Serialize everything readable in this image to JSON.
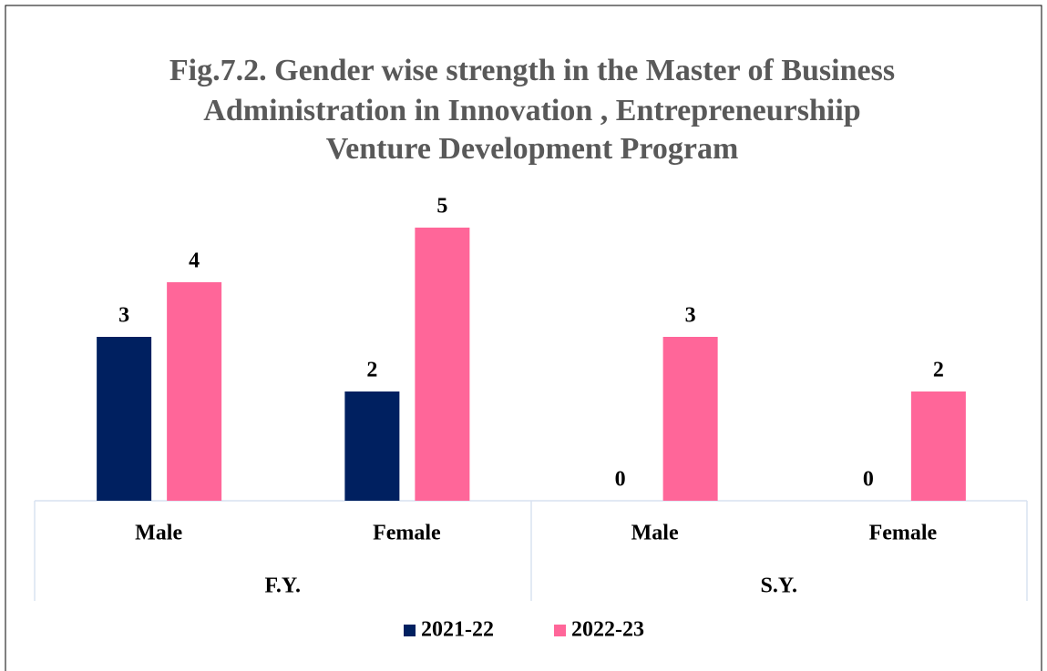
{
  "chart_data": {
    "type": "bar",
    "title": [
      "Fig.7.2. Gender wise strength in the Master of Business",
      "Administration in Innovation , Entrepreneurshiip",
      "Venture Development Program"
    ],
    "categories": [
      "Male",
      "Female",
      "Male",
      "Female"
    ],
    "groups": [
      "F.Y.",
      "S.Y."
    ],
    "series": [
      {
        "name": "2021-22",
        "color": "#002060",
        "values": [
          3,
          2,
          0,
          0
        ]
      },
      {
        "name": "2022-23",
        "color": "#ff6699",
        "values": [
          4,
          5,
          3,
          2
        ]
      }
    ],
    "legend": "bottom"
  }
}
